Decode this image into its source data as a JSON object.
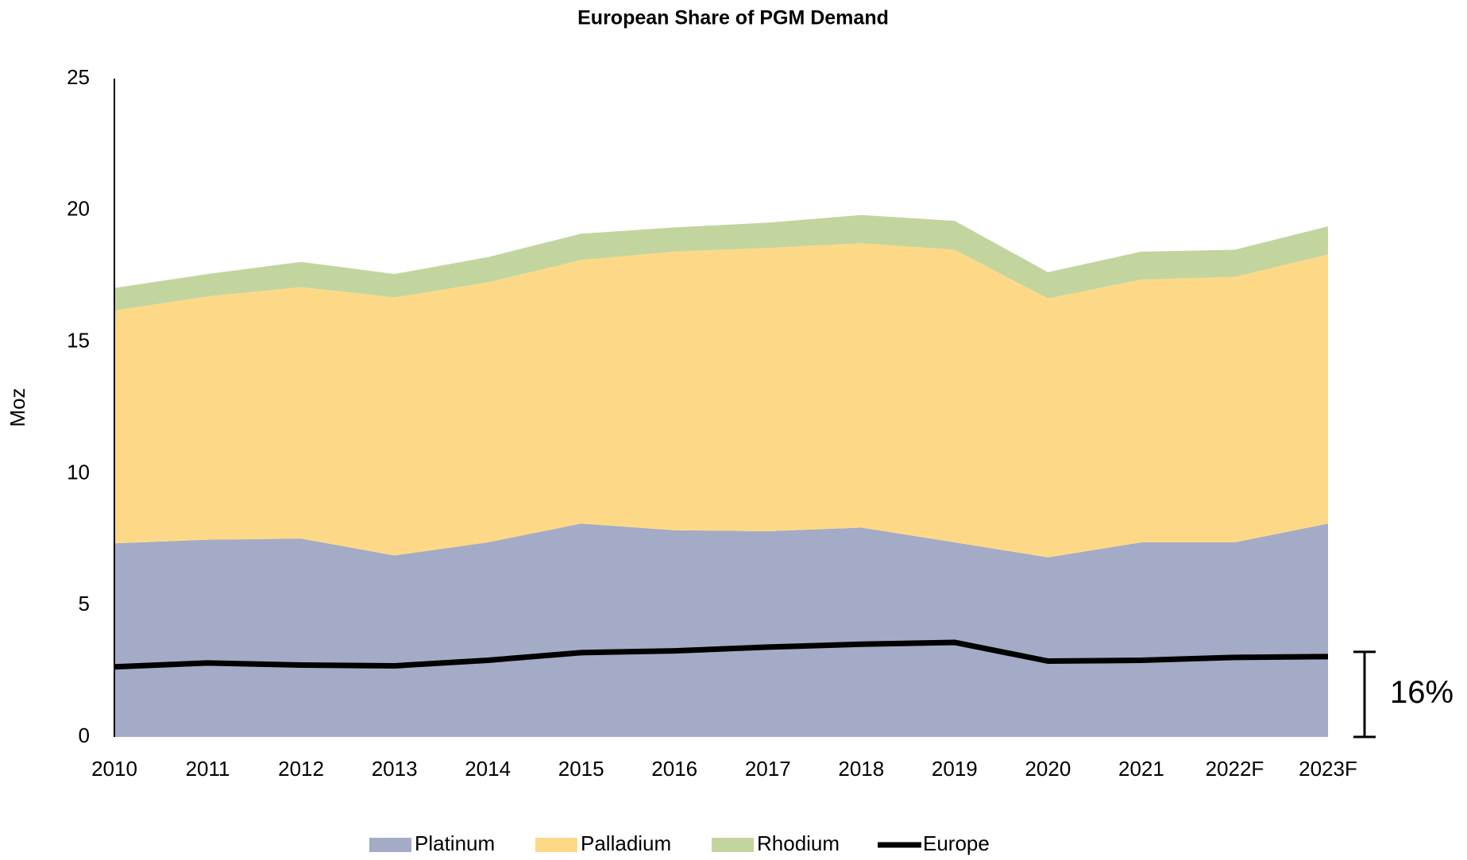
{
  "chart_data": {
    "type": "area",
    "title": "European Share of PGM Demand",
    "y_label": "Moz",
    "categories": [
      "2010",
      "2011",
      "2012",
      "2013",
      "2014",
      "2015",
      "2016",
      "2017",
      "2018",
      "2019",
      "2020",
      "2021",
      "2022F",
      "2023F"
    ],
    "series": [
      {
        "name": "Platinum",
        "color": "#a3abc6",
        "kind": "stacked-area",
        "values": [
          7.35,
          7.49,
          7.53,
          6.89,
          7.39,
          8.1,
          7.85,
          7.81,
          7.95,
          7.39,
          6.82,
          7.39,
          7.39,
          8.1
        ]
      },
      {
        "name": "Palladium",
        "color": "#fdd987",
        "kind": "stacked-area",
        "values": [
          8.84,
          9.24,
          9.55,
          9.8,
          9.87,
          10.01,
          10.58,
          10.76,
          10.8,
          11.11,
          9.83,
          9.98,
          10.08,
          10.22
        ]
      },
      {
        "name": "Rhodium",
        "color": "#c3d59f",
        "kind": "stacked-area",
        "values": [
          0.86,
          0.85,
          0.96,
          0.89,
          0.96,
          1.0,
          0.92,
          0.96,
          1.07,
          1.1,
          1.0,
          1.06,
          1.03,
          1.07
        ]
      },
      {
        "name": "Europe",
        "color": "#000000",
        "kind": "line",
        "values": [
          2.66,
          2.81,
          2.73,
          2.7,
          2.91,
          3.2,
          3.27,
          3.41,
          3.52,
          3.59,
          2.88,
          2.91,
          3.02,
          3.05
        ]
      }
    ],
    "annotation": "16%",
    "ylim": [
      0,
      25
    ],
    "yticks": [
      0,
      5,
      10,
      15,
      20,
      25
    ],
    "grid": false,
    "legend": "bottom"
  }
}
